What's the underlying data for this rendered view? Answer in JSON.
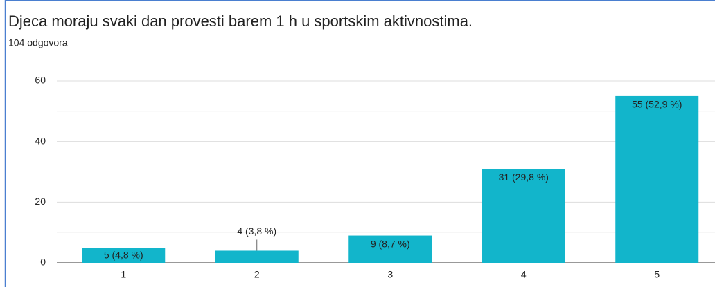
{
  "chart_data": {
    "type": "bar",
    "title": "Djeca moraju svaki dan provesti barem 1 h u sportskim aktivnostima.",
    "subtitle": "104 odgovora",
    "categories": [
      "1",
      "2",
      "3",
      "4",
      "5"
    ],
    "values": [
      5,
      4,
      9,
      31,
      55
    ],
    "value_labels": [
      "5 (4,8 %)",
      "4 (3,8 %)",
      "9 (8,7 %)",
      "31 (29,8 %)",
      "55 (52,9 %)"
    ],
    "color": "#12b5cb",
    "ylim": [
      0,
      60
    ],
    "yticks": [
      0,
      20,
      40,
      60
    ],
    "minor_yticks": [
      10,
      30,
      50
    ],
    "grid": true
  }
}
